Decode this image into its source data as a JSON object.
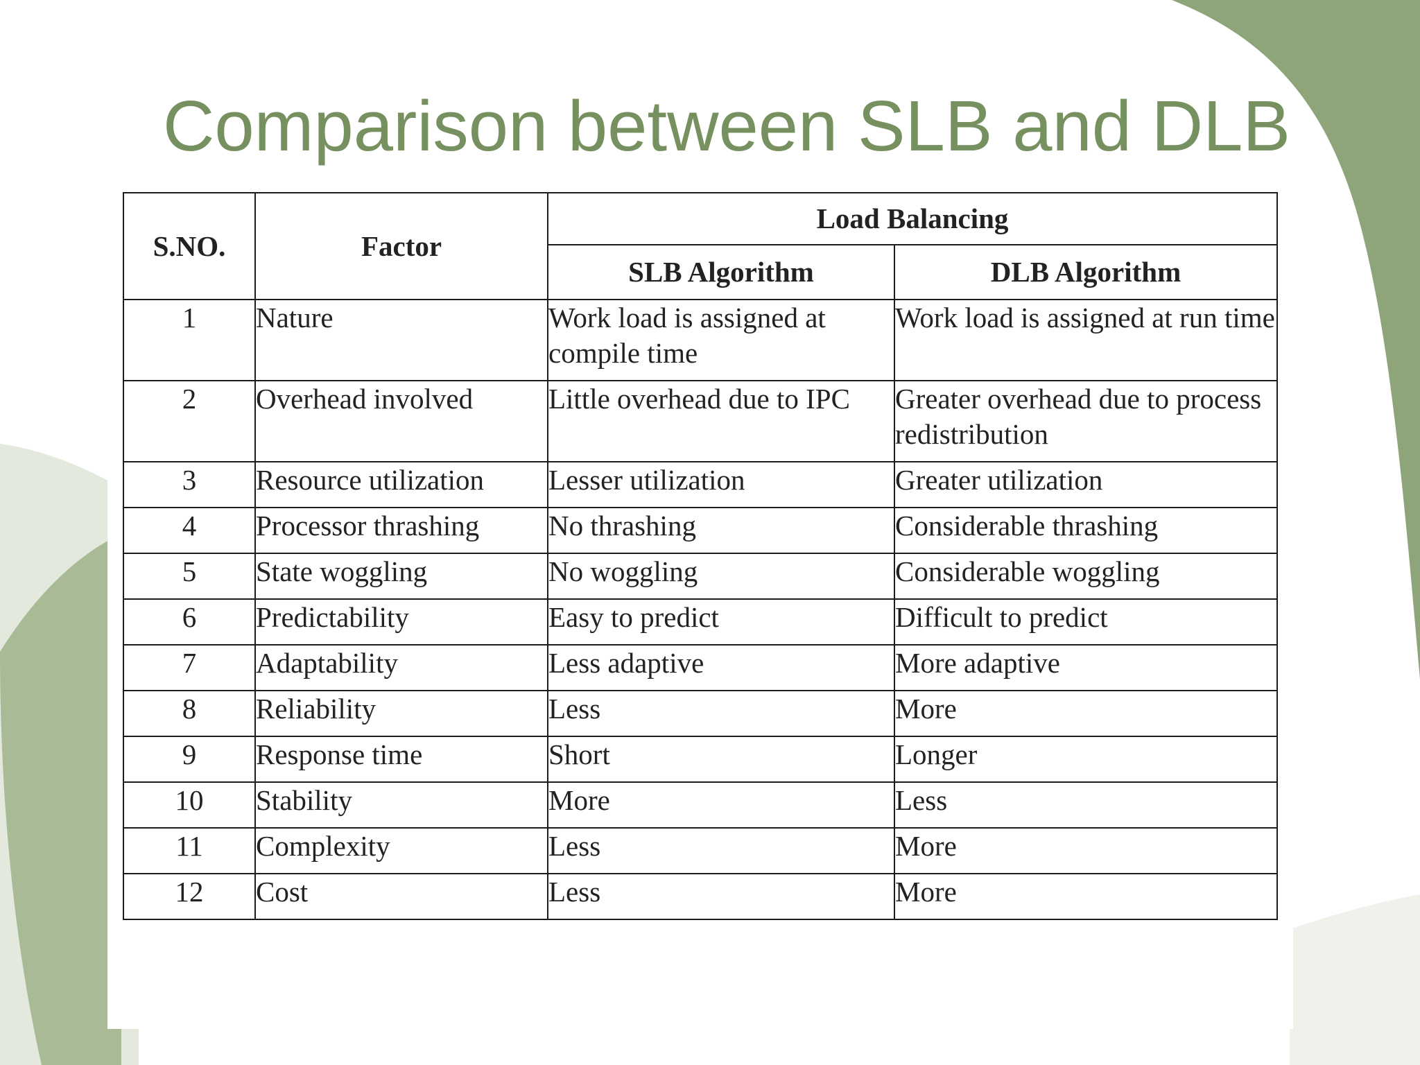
{
  "slide": {
    "title": "Comparison between SLB and DLB"
  },
  "table": {
    "headers": {
      "sno": "S.NO.",
      "factor": "Factor",
      "group": "Load Balancing",
      "slb": "SLB Algorithm",
      "dlb": "DLB Algorithm"
    },
    "rows": [
      {
        "sno": "1",
        "factor": "Nature",
        "slb": "Work load is assigned at compile time",
        "dlb": "Work load is assigned at run time"
      },
      {
        "sno": "2",
        "factor": "Overhead involved",
        "slb": "Little overhead due to IPC",
        "dlb": "Greater overhead due to process redistribution"
      },
      {
        "sno": "3",
        "factor": "Resource utilization",
        "slb": "Lesser utilization",
        "dlb": "Greater utilization"
      },
      {
        "sno": "4",
        "factor": "Processor thrashing",
        "slb": "No thrashing",
        "dlb": "Considerable thrashing"
      },
      {
        "sno": "5",
        "factor": "State woggling",
        "slb": "No woggling",
        "dlb": "Considerable woggling"
      },
      {
        "sno": "6",
        "factor": "Predictability",
        "slb": "Easy to predict",
        "dlb": "Difficult to predict"
      },
      {
        "sno": "7",
        "factor": "Adaptability",
        "slb": "Less adaptive",
        "dlb": "More adaptive"
      },
      {
        "sno": "8",
        "factor": "Reliability",
        "slb": "Less",
        "dlb": "More"
      },
      {
        "sno": "9",
        "factor": "Response time",
        "slb": "Short",
        "dlb": "Longer"
      },
      {
        "sno": "10",
        "factor": "Stability",
        "slb": "More",
        "dlb": "Less"
      },
      {
        "sno": "11",
        "factor": "Complexity",
        "slb": "Less",
        "dlb": "More"
      },
      {
        "sno": "12",
        "factor": "Cost",
        "slb": "Less",
        "dlb": "More"
      }
    ]
  },
  "theme": {
    "title_color": "#76905f",
    "accent_dark": "#8ea57a",
    "accent_light": "#e3e9dc"
  }
}
